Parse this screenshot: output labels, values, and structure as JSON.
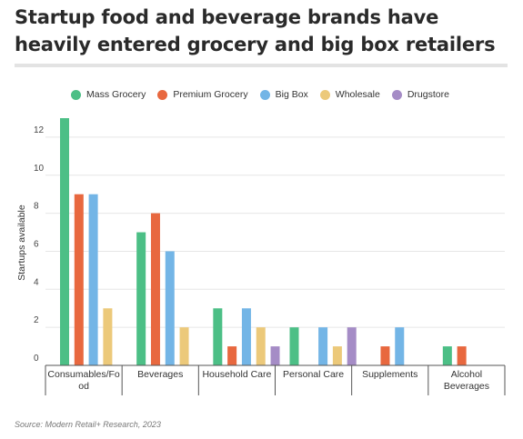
{
  "title": "Startup food and beverage brands have heavily entered grocery and big box retailers",
  "source": "Source: Modern Retail+ Research, 2023",
  "colors": {
    "Mass Grocery": "#4cbf86",
    "Premium Grocery": "#e8683f",
    "Big Box": "#73b5e6",
    "Wholesale": "#ecc97a",
    "Drugstore": "#a58cc6"
  },
  "chart_data": {
    "type": "bar",
    "title": "Startup food and beverage brands have heavily entered grocery and big box retailers",
    "ylabel": "Startups available",
    "xlabel": "",
    "ylim": [
      0,
      13
    ],
    "yticks": [
      0,
      2,
      4,
      6,
      8,
      10,
      12
    ],
    "grid": true,
    "legend_position": "top",
    "categories": [
      "Consumables/Fo\nod",
      "Beverages",
      "Household Care",
      "Personal Care",
      "Supplements",
      "Alcohol\nBeverages"
    ],
    "series": [
      {
        "name": "Mass Grocery",
        "values": [
          13,
          7,
          3,
          2,
          0,
          1
        ]
      },
      {
        "name": "Premium Grocery",
        "values": [
          9,
          8,
          1,
          0,
          1,
          1
        ]
      },
      {
        "name": "Big Box",
        "values": [
          9,
          6,
          3,
          2,
          2,
          0
        ]
      },
      {
        "name": "Wholesale",
        "values": [
          3,
          2,
          2,
          1,
          0,
          0
        ]
      },
      {
        "name": "Drugstore",
        "values": [
          0,
          0,
          1,
          2,
          0,
          0
        ]
      }
    ]
  }
}
